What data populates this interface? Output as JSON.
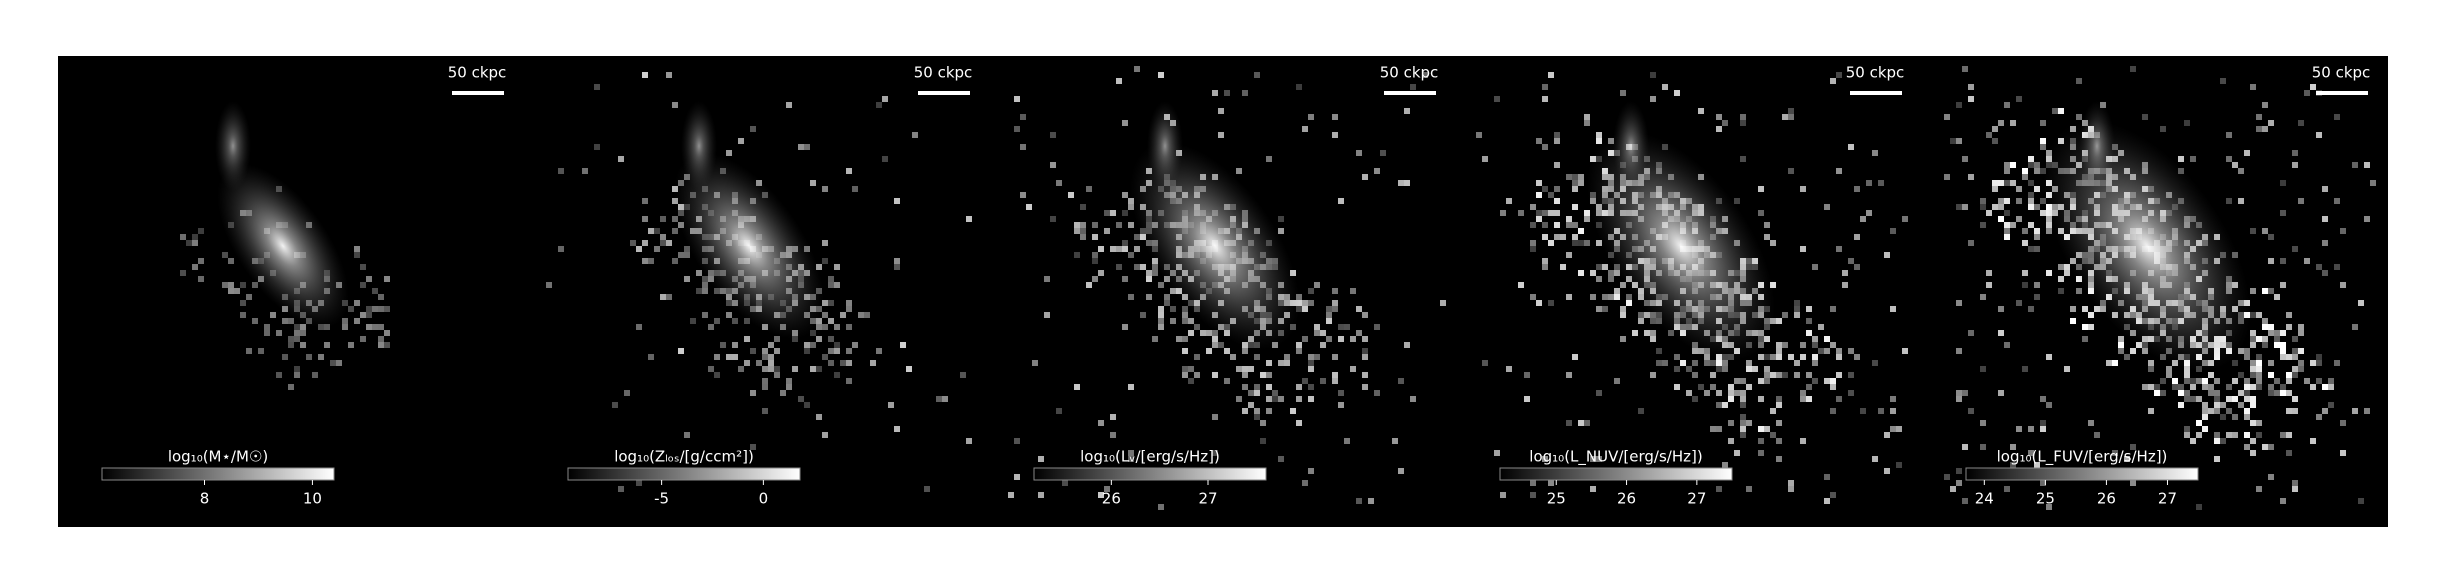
{
  "chart_data": [
    {
      "type": "image",
      "scale_label": "50 ckpc",
      "colorbar_label": "log₁₀(M⋆/M☉)",
      "clim": [
        6.1,
        10.4
      ],
      "cticks": [
        8,
        10
      ]
    },
    {
      "type": "image",
      "scale_label": "50 ckpc",
      "colorbar_label": "log₁₀(Zₗₒₛ/[g/ccm²])",
      "clim": [
        -9.6,
        1.8
      ],
      "cticks": [
        -5,
        0
      ]
    },
    {
      "type": "image",
      "scale_label": "50 ckpc",
      "colorbar_label": "log₁₀(Lᵥ/[erg/s/Hz])",
      "clim": [
        25.2,
        27.6
      ],
      "cticks": [
        26,
        27
      ]
    },
    {
      "type": "image",
      "scale_label": "50 ckpc",
      "colorbar_label": "log₁₀(L_NUV/[erg/s/Hz])",
      "clim": [
        24.2,
        27.5
      ],
      "cticks": [
        25,
        26,
        27
      ]
    },
    {
      "type": "image",
      "scale_label": "50 ckpc",
      "colorbar_label": "log₁₀(L_FUV/[erg/s/Hz])",
      "clim": [
        23.7,
        27.5
      ],
      "cticks": [
        24,
        25,
        26,
        27
      ]
    }
  ]
}
